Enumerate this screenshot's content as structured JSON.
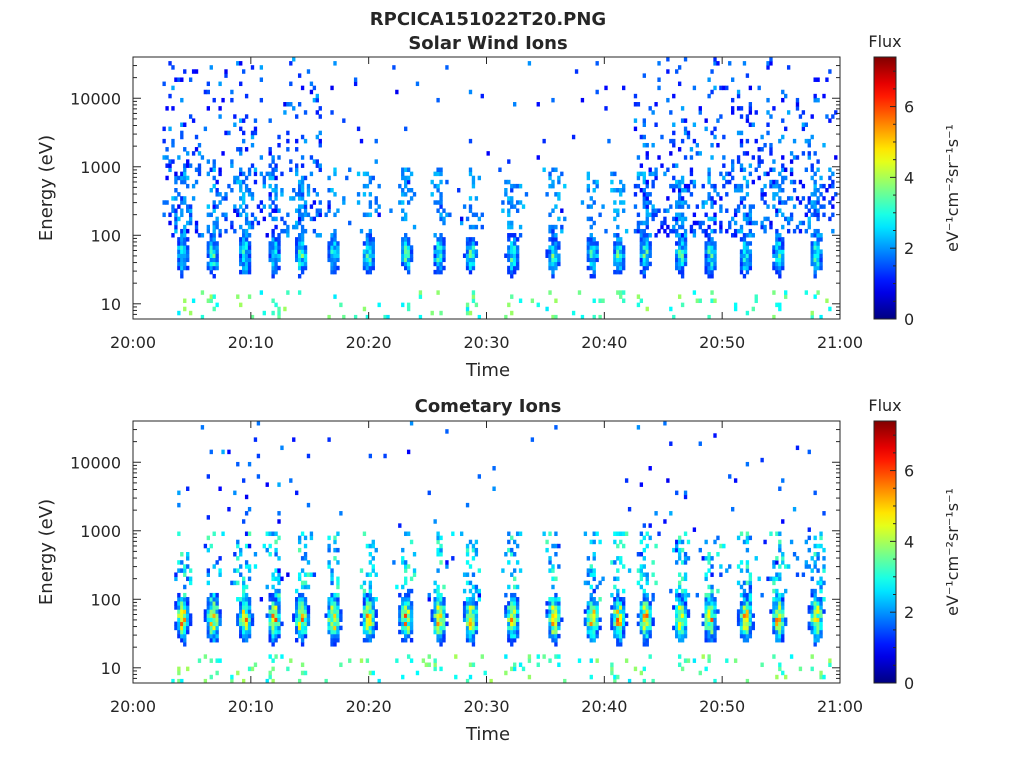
{
  "figure_title": "RPCICA151022T20.PNG",
  "chart_data": [
    {
      "type": "heatmap",
      "title": "Solar Wind Ions",
      "xlabel": "Time",
      "ylabel": "Energy (eV)",
      "x_tick_labels": [
        "20:00",
        "20:10",
        "20:20",
        "20:30",
        "20:40",
        "20:50",
        "21:00"
      ],
      "x_tick_minutes": [
        0,
        10,
        20,
        30,
        40,
        50,
        60
      ],
      "xlim_minutes": [
        0,
        60
      ],
      "yscale": "log",
      "ylim": [
        6,
        40000
      ],
      "y_tick_labels": [
        "10",
        "100",
        "1000",
        "10000"
      ],
      "y_tick_values": [
        10,
        100,
        1000,
        10000
      ],
      "colorbar": {
        "title": "Flux",
        "label": "eV⁻¹cm⁻²sr⁻¹s⁻¹",
        "range": [
          0,
          7.4
        ],
        "tick_labels": [
          "0",
          "2",
          "4",
          "6"
        ],
        "tick_values": [
          0,
          2,
          4,
          6
        ],
        "colormap": "jet"
      },
      "bursts_minutes": [
        4.2,
        6.8,
        9.5,
        12.0,
        14.3,
        17.0,
        20.0,
        23.2,
        26.0,
        28.7,
        32.2,
        35.7,
        39.0,
        41.2,
        43.5,
        46.5,
        49.0,
        52.0,
        54.8,
        58.0
      ],
      "typical_peak_flux": 3.5,
      "high_energy_periods_minutes": [
        [
          2.5,
          16.0
        ],
        [
          42.5,
          59.8
        ]
      ]
    },
    {
      "type": "heatmap",
      "title": "Cometary Ions",
      "xlabel": "Time",
      "ylabel": "Energy (eV)",
      "x_tick_labels": [
        "20:00",
        "20:10",
        "20:20",
        "20:30",
        "20:40",
        "20:50",
        "21:00"
      ],
      "x_tick_minutes": [
        0,
        10,
        20,
        30,
        40,
        50,
        60
      ],
      "xlim_minutes": [
        0,
        60
      ],
      "yscale": "log",
      "ylim": [
        6,
        40000
      ],
      "y_tick_labels": [
        "10",
        "100",
        "1000",
        "10000"
      ],
      "y_tick_values": [
        10,
        100,
        1000,
        10000
      ],
      "colorbar": {
        "title": "Flux",
        "label": "eV⁻¹cm⁻²sr⁻¹s⁻¹",
        "range": [
          0,
          7.4
        ],
        "tick_labels": [
          "0",
          "2",
          "4",
          "6"
        ],
        "tick_values": [
          0,
          2,
          4,
          6
        ],
        "colormap": "jet"
      },
      "bursts_minutes": [
        4.2,
        6.8,
        9.5,
        12.0,
        14.3,
        17.0,
        20.0,
        23.2,
        26.0,
        28.7,
        32.2,
        35.7,
        39.0,
        41.2,
        43.5,
        46.5,
        49.0,
        52.0,
        54.8,
        58.0
      ],
      "typical_peak_flux": 5.5,
      "high_energy_periods_minutes": [
        [
          2.5,
          16.0
        ],
        [
          42.5,
          59.8
        ]
      ]
    }
  ]
}
